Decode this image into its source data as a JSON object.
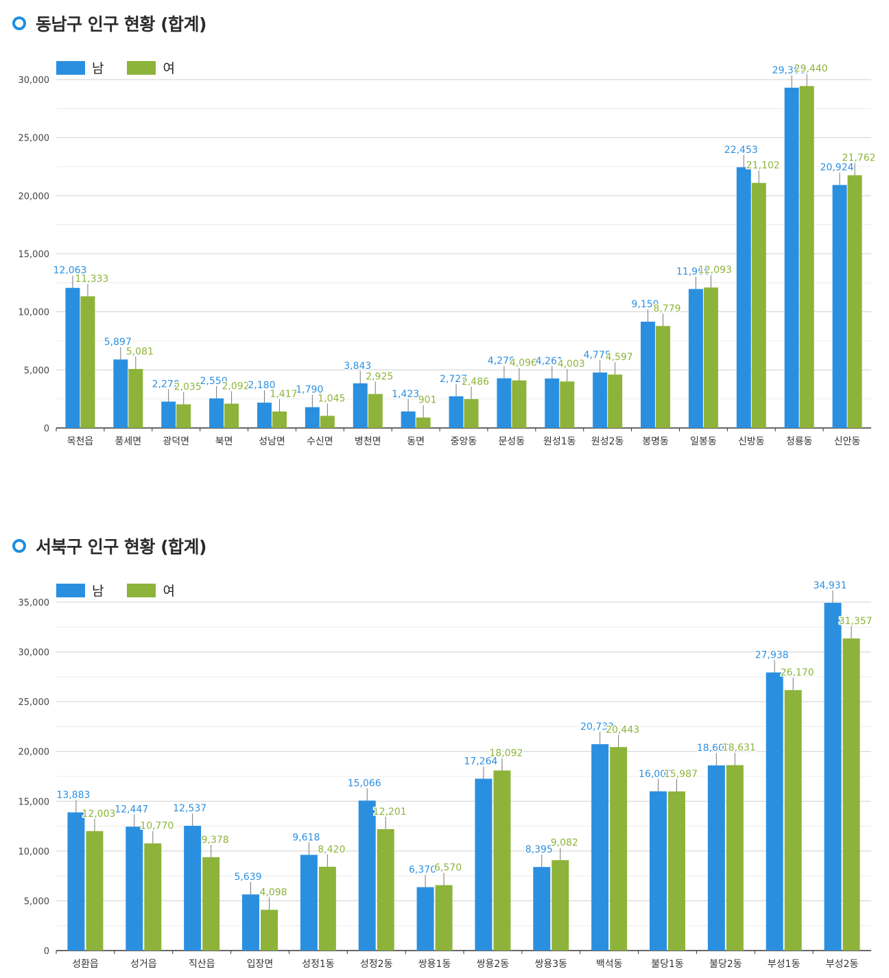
{
  "colors": {
    "male": "#2b8fe0",
    "female": "#8db33a",
    "ring": "#1e8ee0"
  },
  "charts": [
    {
      "title": "동남구 인구 현황 (합계)",
      "legend": {
        "male": "남",
        "female": "여"
      }
    },
    {
      "title": "서북구 인구 현황 (합계)",
      "legend": {
        "male": "남",
        "female": "여"
      }
    }
  ],
  "chart_data": [
    {
      "type": "bar",
      "title": "동남구 인구 현황 (합계)",
      "categories": [
        "목천읍",
        "풍세면",
        "광덕면",
        "북면",
        "성남면",
        "수신면",
        "병천면",
        "동면",
        "중앙동",
        "문성동",
        "원성1동",
        "원성2동",
        "봉명동",
        "일봉동",
        "신방동",
        "청룡동",
        "신안동"
      ],
      "series": [
        {
          "name": "남",
          "values": [
            12063,
            5897,
            2270,
            2550,
            2180,
            1790,
            3843,
            1423,
            2727,
            4278,
            4261,
            4775,
            9150,
            11966,
            22453,
            29300,
            20924
          ]
        },
        {
          "name": "여",
          "values": [
            11333,
            5081,
            2035,
            2092,
            1417,
            1045,
            2925,
            901,
            2486,
            4096,
            4003,
            4597,
            8779,
            12093,
            21102,
            29440,
            21762
          ]
        }
      ],
      "yticks": [
        "30,000",
        "25,000",
        "20,000",
        "15,000",
        "10,000",
        "5,000",
        "0"
      ],
      "ylim": [
        0,
        30000
      ],
      "grid": true,
      "legend_position": "top-left"
    },
    {
      "type": "bar",
      "title": "서북구 인구 현황 (합계)",
      "categories": [
        "성환읍",
        "성거읍",
        "직산읍",
        "입장면",
        "성정1동",
        "성정2동",
        "쌍용1동",
        "쌍용2동",
        "쌍용3동",
        "백석동",
        "불당1동",
        "불당2동",
        "부성1동",
        "부성2동"
      ],
      "series": [
        {
          "name": "남",
          "values": [
            13883,
            12447,
            12537,
            5639,
            9618,
            15066,
            6370,
            17264,
            8395,
            20733,
            16000,
            18600,
            27938,
            34931
          ]
        },
        {
          "name": "여",
          "values": [
            12003,
            10770,
            9378,
            4098,
            8420,
            12201,
            6570,
            18092,
            9082,
            20443,
            15987,
            18631,
            26170,
            31357
          ]
        }
      ],
      "yticks": [
        "35,000",
        "30,000",
        "25,000",
        "20,000",
        "15,000",
        "10,000",
        "5,000",
        "0"
      ],
      "ylim": [
        0,
        35000
      ],
      "grid": true,
      "legend_position": "top-left"
    }
  ]
}
